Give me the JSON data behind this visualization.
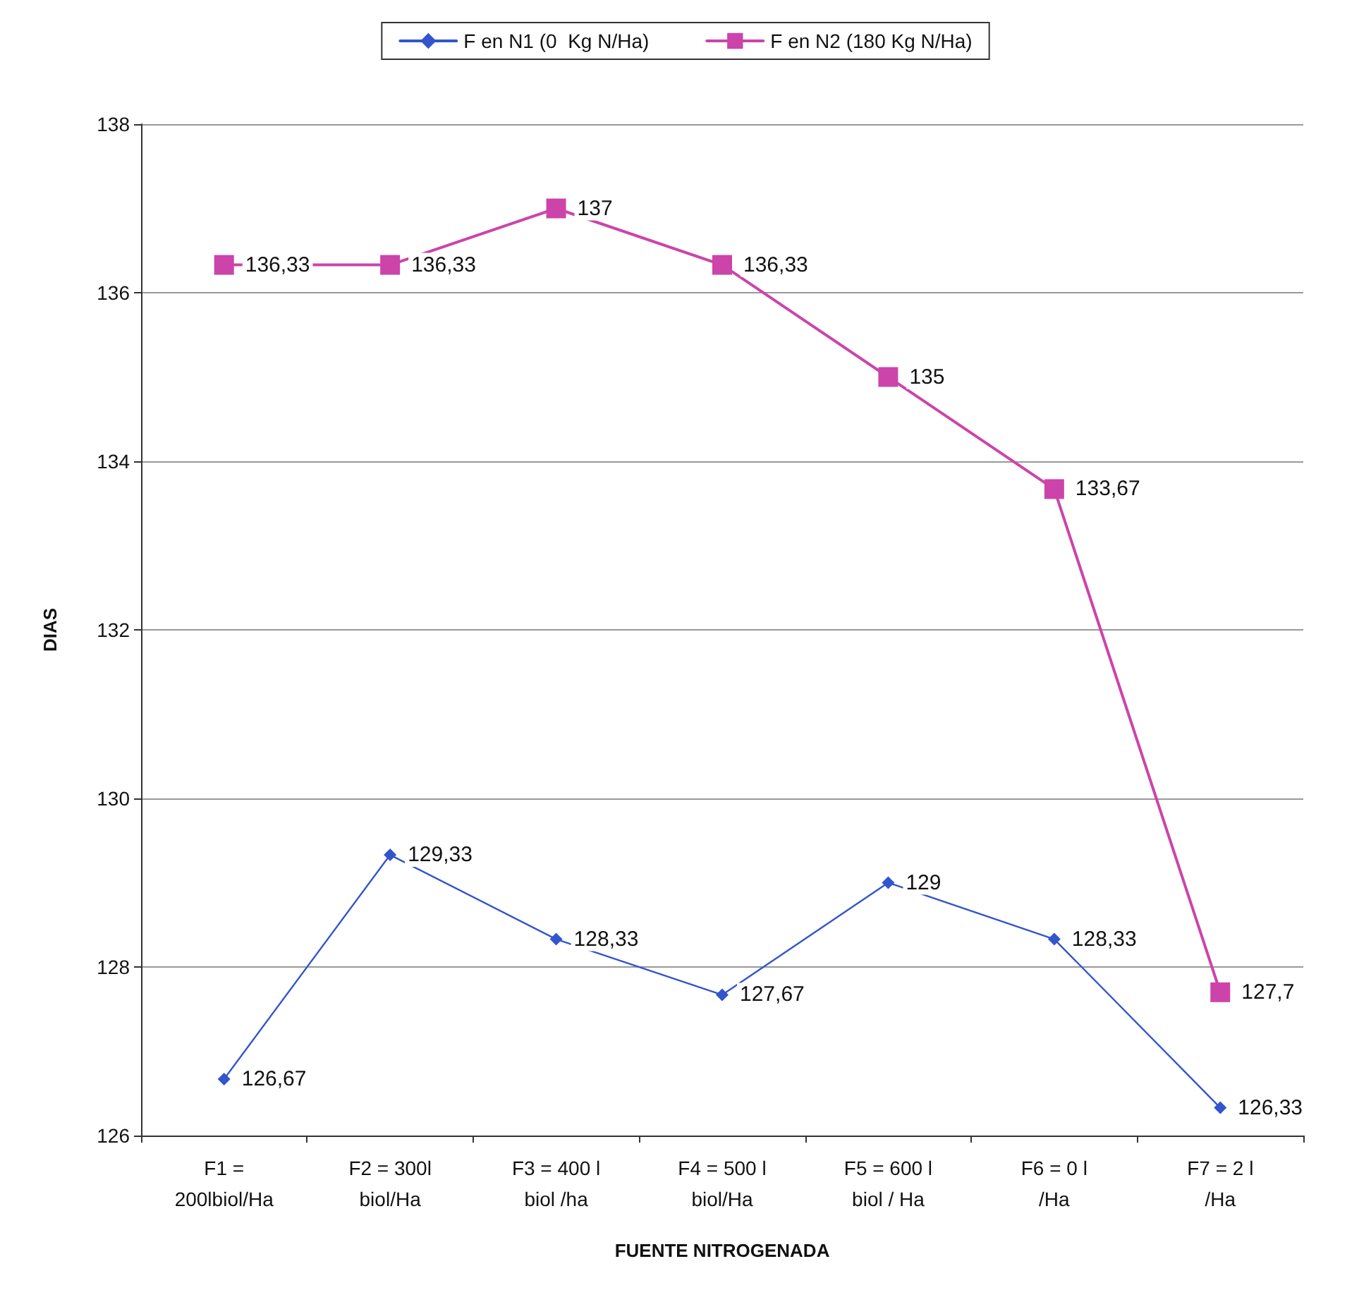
{
  "chart_data": {
    "type": "line",
    "xlabel": "FUENTE NITROGENADA",
    "ylabel": "DIAS",
    "categories": [
      "F1 =\n200lbiol/Ha",
      "F2 = 300l\nbiol/Ha",
      "F3 = 400 l\nbiol /ha",
      "F4 = 500 l\nbiol/Ha",
      "F5 = 600 l\nbiol / Ha",
      "F6 = 0 l\n/Ha",
      "F7 = 2 l\n/Ha"
    ],
    "series": [
      {
        "name": "F en N1 (0  Kg N/Ha)",
        "color": "#3355cc",
        "marker": "diamond",
        "values": [
          126.67,
          129.33,
          128.33,
          127.67,
          129,
          128.33,
          126.33
        ],
        "value_labels": [
          "126,67",
          "129,33",
          "128,33",
          "127,67",
          "129",
          "128,33",
          "126,33"
        ]
      },
      {
        "name": "F en N2 (180 Kg N/Ha)",
        "color": "#cc44aa",
        "marker": "square",
        "values": [
          136.33,
          136.33,
          137,
          136.33,
          135,
          133.67,
          127.7
        ],
        "value_labels": [
          "136,33",
          "136,33",
          "137",
          "136,33",
          "135",
          "133,67",
          "127,7"
        ]
      }
    ],
    "ylim": [
      126,
      138
    ],
    "yticks": [
      126,
      128,
      130,
      132,
      134,
      136,
      138
    ],
    "grid": "y",
    "legend": "top",
    "line_style": "solid"
  }
}
